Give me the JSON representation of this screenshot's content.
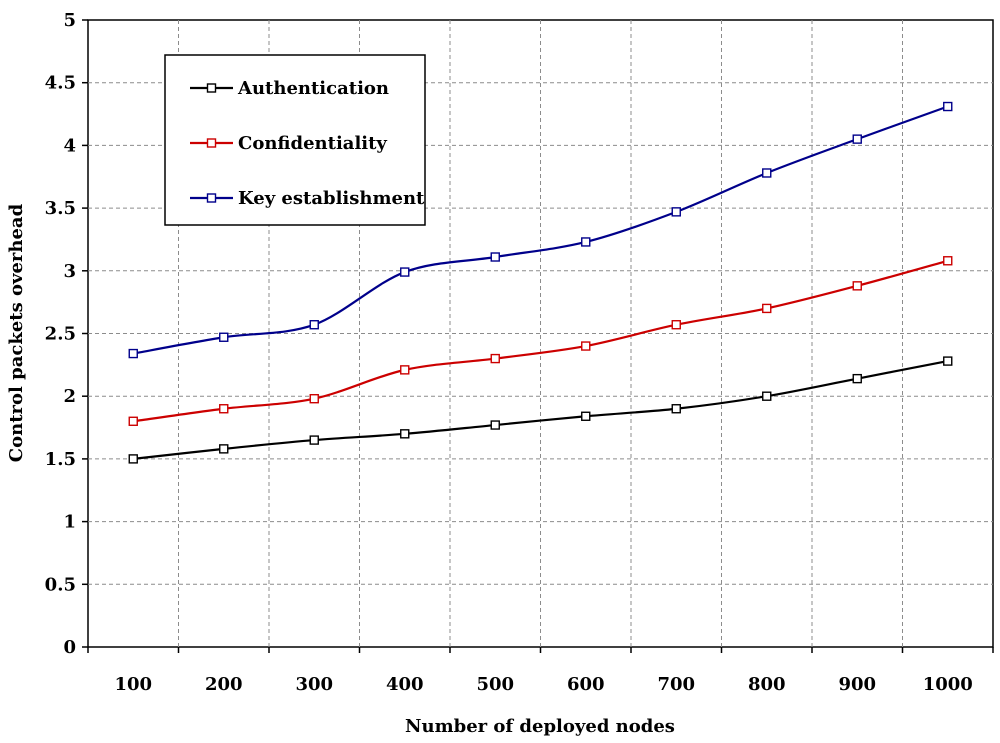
{
  "chart_data": {
    "type": "line",
    "title": "",
    "xlabel": "Number of deployed nodes",
    "ylabel": "Control packets overhead",
    "categories": [
      "100",
      "200",
      "300",
      "400",
      "500",
      "600",
      "700",
      "800",
      "900",
      "1000"
    ],
    "y_ticks": [
      "0",
      "0.5",
      "1",
      "1.5",
      "2",
      "2.5",
      "3",
      "3.5",
      "4",
      "4.5",
      "5"
    ],
    "ylim": [
      0,
      5
    ],
    "grid": true,
    "legend_position": "top-left",
    "series": [
      {
        "name": "Authentication",
        "color": "#000000",
        "values": [
          1.5,
          1.58,
          1.65,
          1.7,
          1.77,
          1.84,
          1.9,
          2.0,
          2.14,
          2.28
        ]
      },
      {
        "name": "Confidentiality",
        "color": "#cc0000",
        "values": [
          1.8,
          1.9,
          1.98,
          2.21,
          2.3,
          2.4,
          2.57,
          2.7,
          2.88,
          3.08
        ]
      },
      {
        "name": "Key establishment",
        "color": "#00008b",
        "values": [
          2.34,
          2.47,
          2.57,
          2.99,
          3.11,
          3.23,
          3.47,
          3.78,
          4.05,
          4.31
        ]
      }
    ]
  }
}
